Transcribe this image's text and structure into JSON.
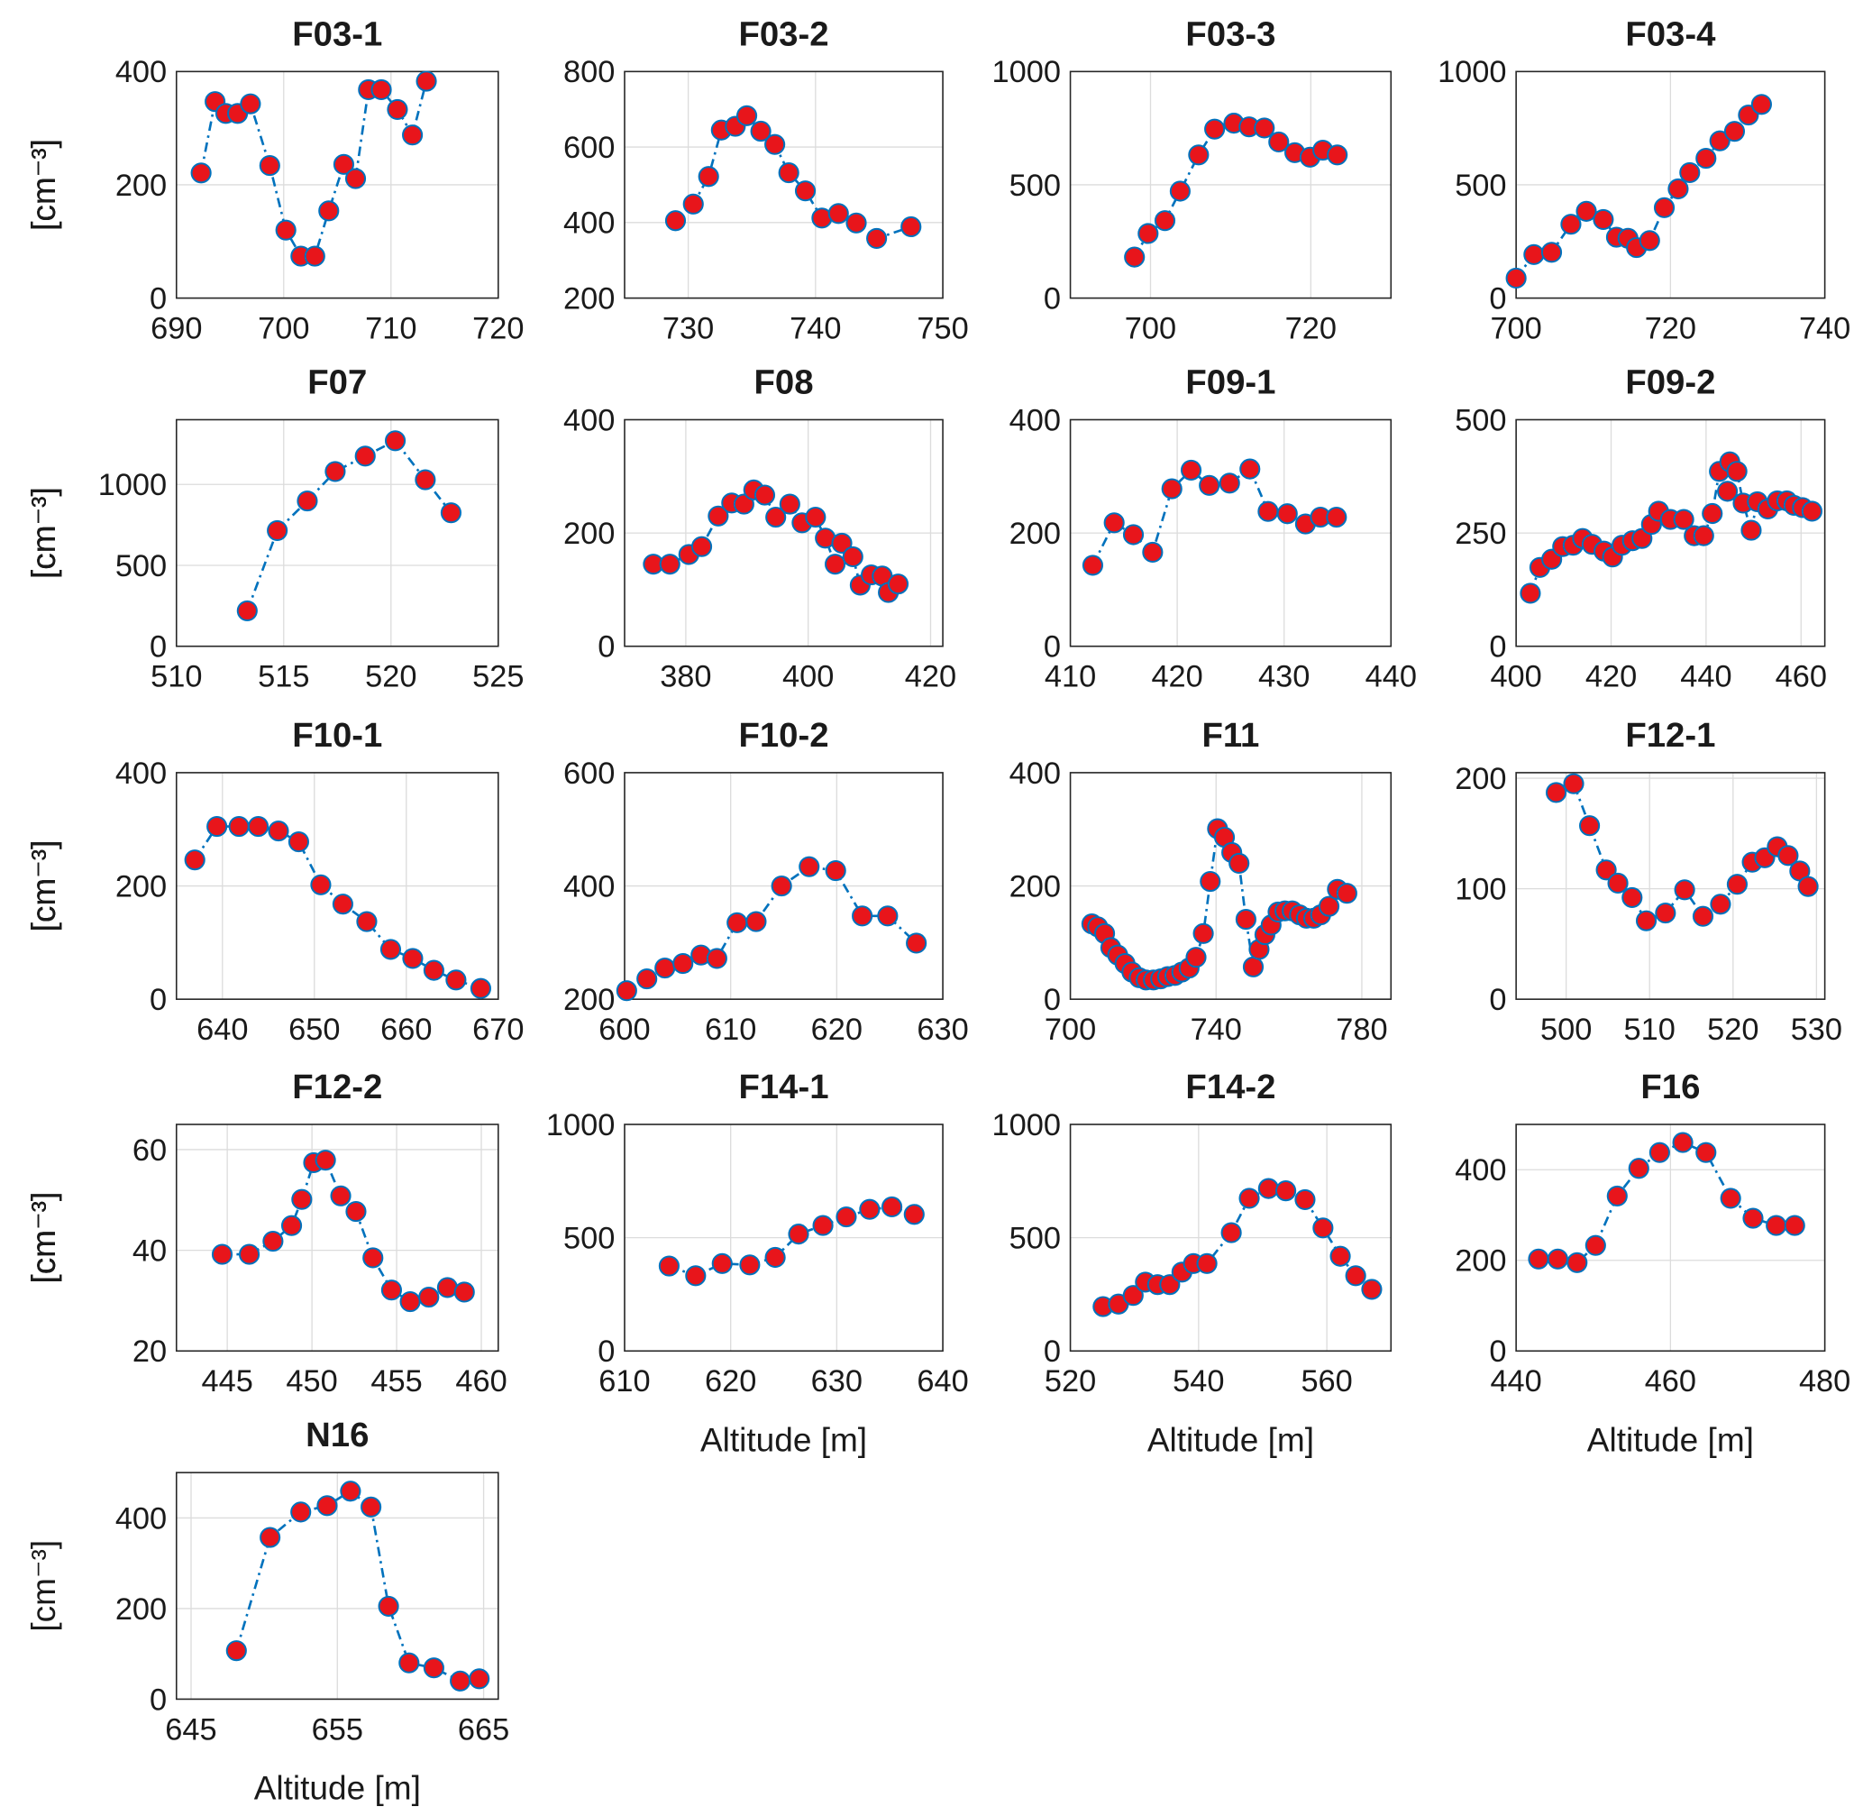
{
  "chart_data": [
    {
      "type": "line",
      "title": "F03-1",
      "ylabel": "[cm⁻³]",
      "grid": true,
      "color": "#0072bd",
      "marker_color": "#e8151b",
      "x": [
        692.3,
        693.6,
        694.6,
        695.7,
        696.9,
        698.7,
        700.2,
        701.6,
        702.9,
        704.2,
        705.6,
        706.7,
        707.9,
        709.1,
        710.6,
        712,
        713.3
      ],
      "values": [
        221,
        347,
        326,
        326,
        343,
        234,
        120,
        74,
        74,
        154,
        236,
        211,
        368,
        368,
        333,
        288,
        383
      ],
      "xlim": [
        690,
        720
      ],
      "xticks": [
        690,
        700,
        710,
        720
      ],
      "ylim": [
        0,
        400
      ],
      "yticks": [
        0,
        200,
        400
      ]
    },
    {
      "type": "line",
      "title": "F03-2",
      "ylabel": "[cm⁻³]",
      "grid": true,
      "color": "#0072bd",
      "marker_color": "#e8151b",
      "x": [
        729,
        730.4,
        731.6,
        732.6,
        733.7,
        734.6,
        735.7,
        736.8,
        737.9,
        739.2,
        740.5,
        741.8,
        743.2,
        744.8,
        747.5
      ],
      "values": [
        405,
        449,
        522,
        645,
        655,
        683,
        642,
        607,
        532,
        484,
        412,
        424,
        399,
        358,
        389
      ],
      "xlim": [
        725,
        750
      ],
      "xticks": [
        730,
        740,
        750
      ],
      "ylim": [
        200,
        800
      ],
      "yticks": [
        200,
        400,
        600,
        800
      ]
    },
    {
      "type": "line",
      "title": "F03-3",
      "ylabel": "[cm⁻³]",
      "grid": true,
      "color": "#0072bd",
      "marker_color": "#e8151b",
      "x": [
        698,
        699.7,
        701.8,
        703.7,
        706,
        708,
        710.4,
        712.3,
        714.2,
        716,
        718,
        719.9,
        721.5,
        723.3
      ],
      "values": [
        181,
        285,
        342,
        472,
        632,
        746,
        772,
        756,
        751,
        689,
        642,
        622,
        653,
        632
      ],
      "xlim": [
        690,
        730
      ],
      "xticks": [
        700,
        720
      ],
      "ylim": [
        0,
        1000
      ],
      "yticks": [
        0,
        500,
        1000
      ]
    },
    {
      "type": "line",
      "title": "F03-4",
      "ylabel": "[cm⁻³]",
      "grid": true,
      "color": "#0072bd",
      "marker_color": "#e8151b",
      "x": [
        700,
        702.3,
        704.6,
        707.1,
        709.1,
        711.3,
        713,
        714.5,
        715.6,
        717.3,
        719.2,
        721,
        722.5,
        724.6,
        726.4,
        728.3,
        730.1,
        731.8
      ],
      "values": [
        88,
        192,
        202,
        326,
        383,
        347,
        269,
        264,
        223,
        254,
        399,
        482,
        554,
        617,
        694,
        736,
        808,
        855
      ],
      "xlim": [
        700,
        740
      ],
      "xticks": [
        700,
        720,
        740
      ],
      "ylim": [
        0,
        1000
      ],
      "yticks": [
        0,
        500,
        1000
      ]
    },
    {
      "type": "line",
      "title": "F07",
      "ylabel": "[cm⁻³]",
      "grid": true,
      "color": "#0072bd",
      "marker_color": "#e8151b",
      "x": [
        513.3,
        514.7,
        516.1,
        517.4,
        518.8,
        520.2,
        521.6,
        522.8
      ],
      "values": [
        219,
        715,
        898,
        1080,
        1175,
        1270,
        1029,
        825
      ],
      "xlim": [
        510,
        525
      ],
      "xticks": [
        510,
        515,
        520,
        525
      ],
      "ylim": [
        0,
        1400
      ],
      "yticks": [
        0,
        500,
        1000
      ]
    },
    {
      "type": "line",
      "title": "F08",
      "ylabel": "[cm⁻³]",
      "grid": true,
      "color": "#0072bd",
      "marker_color": "#e8151b",
      "x": [
        374.7,
        377.4,
        380.5,
        382.6,
        385.3,
        387.5,
        389.5,
        391.1,
        392.9,
        394.7,
        397,
        399,
        401.2,
        402.8,
        404.4,
        405.5,
        407.3,
        408.5,
        410.3,
        412.1,
        413.1,
        414.7
      ],
      "values": [
        145,
        145,
        162,
        176,
        230,
        253,
        251,
        276,
        267,
        228,
        251,
        218,
        228,
        191,
        145,
        182,
        158,
        108,
        126,
        124,
        95,
        110
      ],
      "xlim": [
        370,
        422
      ],
      "xticks": [
        380,
        400,
        420
      ],
      "ylim": [
        0,
        400
      ],
      "yticks": [
        0,
        200,
        400
      ]
    },
    {
      "type": "line",
      "title": "F09-1",
      "ylabel": "[cm⁻³]",
      "grid": true,
      "color": "#0072bd",
      "marker_color": "#e8151b",
      "x": [
        412.1,
        414.1,
        415.9,
        417.7,
        419.5,
        421.3,
        423,
        424.9,
        426.8,
        428.5,
        430.3,
        432,
        433.4,
        434.9
      ],
      "values": [
        143,
        218,
        197,
        166,
        278,
        311,
        284,
        288,
        313,
        238,
        234,
        216,
        228,
        228
      ],
      "xlim": [
        410,
        440
      ],
      "xticks": [
        410,
        420,
        430,
        440
      ],
      "ylim": [
        0,
        400
      ],
      "yticks": [
        0,
        200,
        400
      ]
    },
    {
      "type": "line",
      "title": "F09-2",
      "ylabel": "[cm⁻³]",
      "grid": true,
      "color": "#0072bd",
      "marker_color": "#e8151b",
      "x": [
        403,
        405,
        407.5,
        409.8,
        412,
        414,
        416,
        418.5,
        420.3,
        422.3,
        424.5,
        426.5,
        428.5,
        430,
        432.5,
        435.3,
        437.5,
        439.5,
        441.3,
        442.8,
        444.5,
        445,
        446.5,
        447.8,
        449.5,
        450.8,
        453,
        455,
        457,
        458.5,
        460.3,
        462.3
      ],
      "values": [
        117,
        174,
        192,
        220,
        223,
        238,
        225,
        210,
        197,
        223,
        233,
        238,
        269,
        298,
        280,
        280,
        244,
        244,
        293,
        386,
        342,
        407,
        386,
        316,
        256,
        319,
        303,
        321,
        321,
        311,
        306,
        298
      ],
      "xlim": [
        400,
        465
      ],
      "xticks": [
        400,
        420,
        440,
        460
      ],
      "ylim": [
        0,
        500
      ],
      "yticks": [
        0,
        250,
        500
      ]
    },
    {
      "type": "line",
      "title": "F10-1",
      "ylabel": "[cm⁻³]",
      "grid": true,
      "color": "#0072bd",
      "marker_color": "#e8151b",
      "x": [
        637,
        639.4,
        641.8,
        643.9,
        646.1,
        648.3,
        650.7,
        653.1,
        655.7,
        658.3,
        660.7,
        663,
        665.4,
        668.1
      ],
      "values": [
        246,
        305,
        305,
        305,
        297,
        278,
        202,
        168,
        137,
        88,
        72,
        51,
        34,
        19
      ],
      "xlim": [
        635,
        670
      ],
      "xticks": [
        640,
        650,
        660,
        670
      ],
      "ylim": [
        0,
        400
      ],
      "yticks": [
        0,
        200,
        400
      ]
    },
    {
      "type": "line",
      "title": "F10-2",
      "ylabel": "[cm⁻³]",
      "grid": true,
      "color": "#0072bd",
      "marker_color": "#e8151b",
      "x": [
        600.2,
        602.1,
        603.8,
        605.5,
        607.2,
        608.7,
        610.6,
        612.4,
        614.8,
        617.4,
        619.9,
        622.4,
        624.8,
        627.5
      ],
      "values": [
        215,
        236,
        255,
        263,
        278,
        272,
        335,
        337,
        400,
        434,
        427,
        347,
        347,
        299
      ],
      "xlim": [
        600,
        630
      ],
      "xticks": [
        600,
        610,
        620,
        630
      ],
      "ylim": [
        200,
        600
      ],
      "yticks": [
        200,
        400,
        600
      ]
    },
    {
      "type": "line",
      "title": "F11",
      "ylabel": "[cm⁻³]",
      "grid": true,
      "color": "#0072bd",
      "marker_color": "#e8151b",
      "x": [
        705.9,
        707.5,
        709.4,
        711.1,
        713,
        715,
        716.9,
        718.9,
        720.8,
        722.8,
        724.8,
        726.7,
        728.7,
        730.6,
        732.6,
        734.5,
        736.5,
        738.4,
        740.4,
        742.3,
        744.3,
        746.3,
        748.2,
        750.2,
        751.8,
        753.4,
        755.1,
        757,
        758.9,
        760.9,
        762.9,
        764.8,
        766.8,
        768.7,
        771,
        773.3,
        775.9
      ],
      "values": [
        133,
        128,
        116,
        91,
        78,
        63,
        48,
        38,
        34,
        34,
        36,
        40,
        42,
        48,
        55,
        74,
        116,
        208,
        301,
        286,
        259,
        240,
        141,
        57,
        88,
        114,
        131,
        154,
        156,
        156,
        149,
        143,
        143,
        149,
        164,
        194,
        187
      ],
      "xlim": [
        700,
        788
      ],
      "xticks": [
        700,
        740,
        780
      ],
      "ylim": [
        0,
        400
      ],
      "yticks": [
        0,
        200,
        400
      ]
    },
    {
      "type": "line",
      "title": "F12-1",
      "ylabel": "[cm⁻³]",
      "grid": true,
      "color": "#0072bd",
      "marker_color": "#e8151b",
      "x": [
        498.8,
        500.9,
        502.8,
        504.8,
        506.2,
        507.9,
        509.6,
        511.9,
        514.2,
        516.4,
        518.5,
        520.5,
        522.3,
        523.8,
        525.3,
        526.6,
        528,
        529
      ],
      "values": [
        187,
        195,
        157,
        117,
        105,
        92,
        71,
        78,
        99,
        75,
        86,
        104,
        124,
        128,
        138,
        130,
        116,
        102
      ],
      "xlim": [
        494,
        531
      ],
      "xticks": [
        500,
        510,
        520,
        530
      ],
      "ylim": [
        0,
        205
      ],
      "yticks": [
        0,
        100,
        200
      ]
    },
    {
      "type": "line",
      "title": "F12-2",
      "ylabel": "[cm⁻³]",
      "grid": true,
      "color": "#0072bd",
      "marker_color": "#e8151b",
      "x": [
        444.7,
        446.3,
        447.7,
        448.8,
        449.4,
        450.1,
        450.8,
        451.7,
        452.6,
        453.6,
        454.7,
        455.8,
        456.9,
        458,
        459
      ],
      "values": [
        39.2,
        39.2,
        41.8,
        44.9,
        50.1,
        57.4,
        57.9,
        50.8,
        47.7,
        38.5,
        32.1,
        29.8,
        30.7,
        32.6,
        31.7
      ],
      "xlim": [
        442,
        461
      ],
      "xticks": [
        445,
        450,
        455,
        460
      ],
      "ylim": [
        20,
        65
      ],
      "yticks": [
        20,
        40,
        60
      ]
    },
    {
      "type": "line",
      "title": "F14-1",
      "ylabel": "[cm⁻³]",
      "xlabel": "Altitude [m]",
      "grid": true,
      "color": "#0072bd",
      "marker_color": "#e8151b",
      "x": [
        614.2,
        616.7,
        619.2,
        621.8,
        624.2,
        626.4,
        628.7,
        630.9,
        633.1,
        635.2,
        637.3
      ],
      "values": [
        375,
        332,
        386,
        380,
        413,
        516,
        554,
        592,
        625,
        636,
        603
      ],
      "xlim": [
        610,
        640
      ],
      "xticks": [
        610,
        620,
        630,
        640
      ],
      "ylim": [
        0,
        1000
      ],
      "yticks": [
        0,
        500,
        1000
      ]
    },
    {
      "type": "line",
      "title": "F14-2",
      "ylabel": "[cm⁻³]",
      "xlabel": "Altitude [m]",
      "grid": true,
      "color": "#0072bd",
      "marker_color": "#e8151b",
      "x": [
        525.1,
        527.5,
        529.8,
        531.7,
        533.6,
        535.5,
        537.4,
        539.2,
        541.3,
        545.1,
        547.9,
        550.9,
        553.6,
        556.6,
        559.4,
        562.1,
        564.5,
        567
      ],
      "values": [
        196,
        207,
        245,
        304,
        293,
        293,
        348,
        386,
        386,
        522,
        674,
        717,
        707,
        668,
        543,
        418,
        332,
        272
      ],
      "xlim": [
        520,
        570
      ],
      "xticks": [
        520,
        540,
        560
      ],
      "ylim": [
        0,
        1000
      ],
      "yticks": [
        0,
        500,
        1000
      ]
    },
    {
      "type": "line",
      "title": "F16",
      "ylabel": "[cm⁻³]",
      "xlabel": "Altitude [m]",
      "grid": true,
      "color": "#0072bd",
      "marker_color": "#e8151b",
      "x": [
        442.9,
        445.4,
        447.9,
        450.3,
        453.1,
        455.9,
        458.6,
        461.6,
        464.6,
        467.8,
        470.7,
        473.7,
        476.1
      ],
      "values": [
        203,
        203,
        195,
        233,
        342,
        403,
        438,
        460,
        438,
        337,
        293,
        277,
        277
      ],
      "xlim": [
        440,
        480
      ],
      "xticks": [
        440,
        460,
        480
      ],
      "ylim": [
        0,
        500
      ],
      "yticks": [
        0,
        200,
        400
      ]
    },
    {
      "type": "line",
      "title": "N16",
      "ylabel": "[cm⁻³]",
      "xlabel": "Altitude [m]",
      "grid": true,
      "color": "#0072bd",
      "marker_color": "#e8151b",
      "x": [
        648.1,
        650.4,
        652.5,
        654.3,
        655.9,
        657.3,
        658.5,
        659.9,
        661.6,
        663.4,
        664.7
      ],
      "values": [
        107,
        357,
        413,
        427,
        459,
        424,
        205,
        80,
        69,
        40,
        45
      ],
      "xlim": [
        644,
        666
      ],
      "xticks": [
        645,
        655,
        665
      ],
      "ylim": [
        0,
        500
      ],
      "yticks": [
        0,
        200,
        400
      ]
    }
  ]
}
